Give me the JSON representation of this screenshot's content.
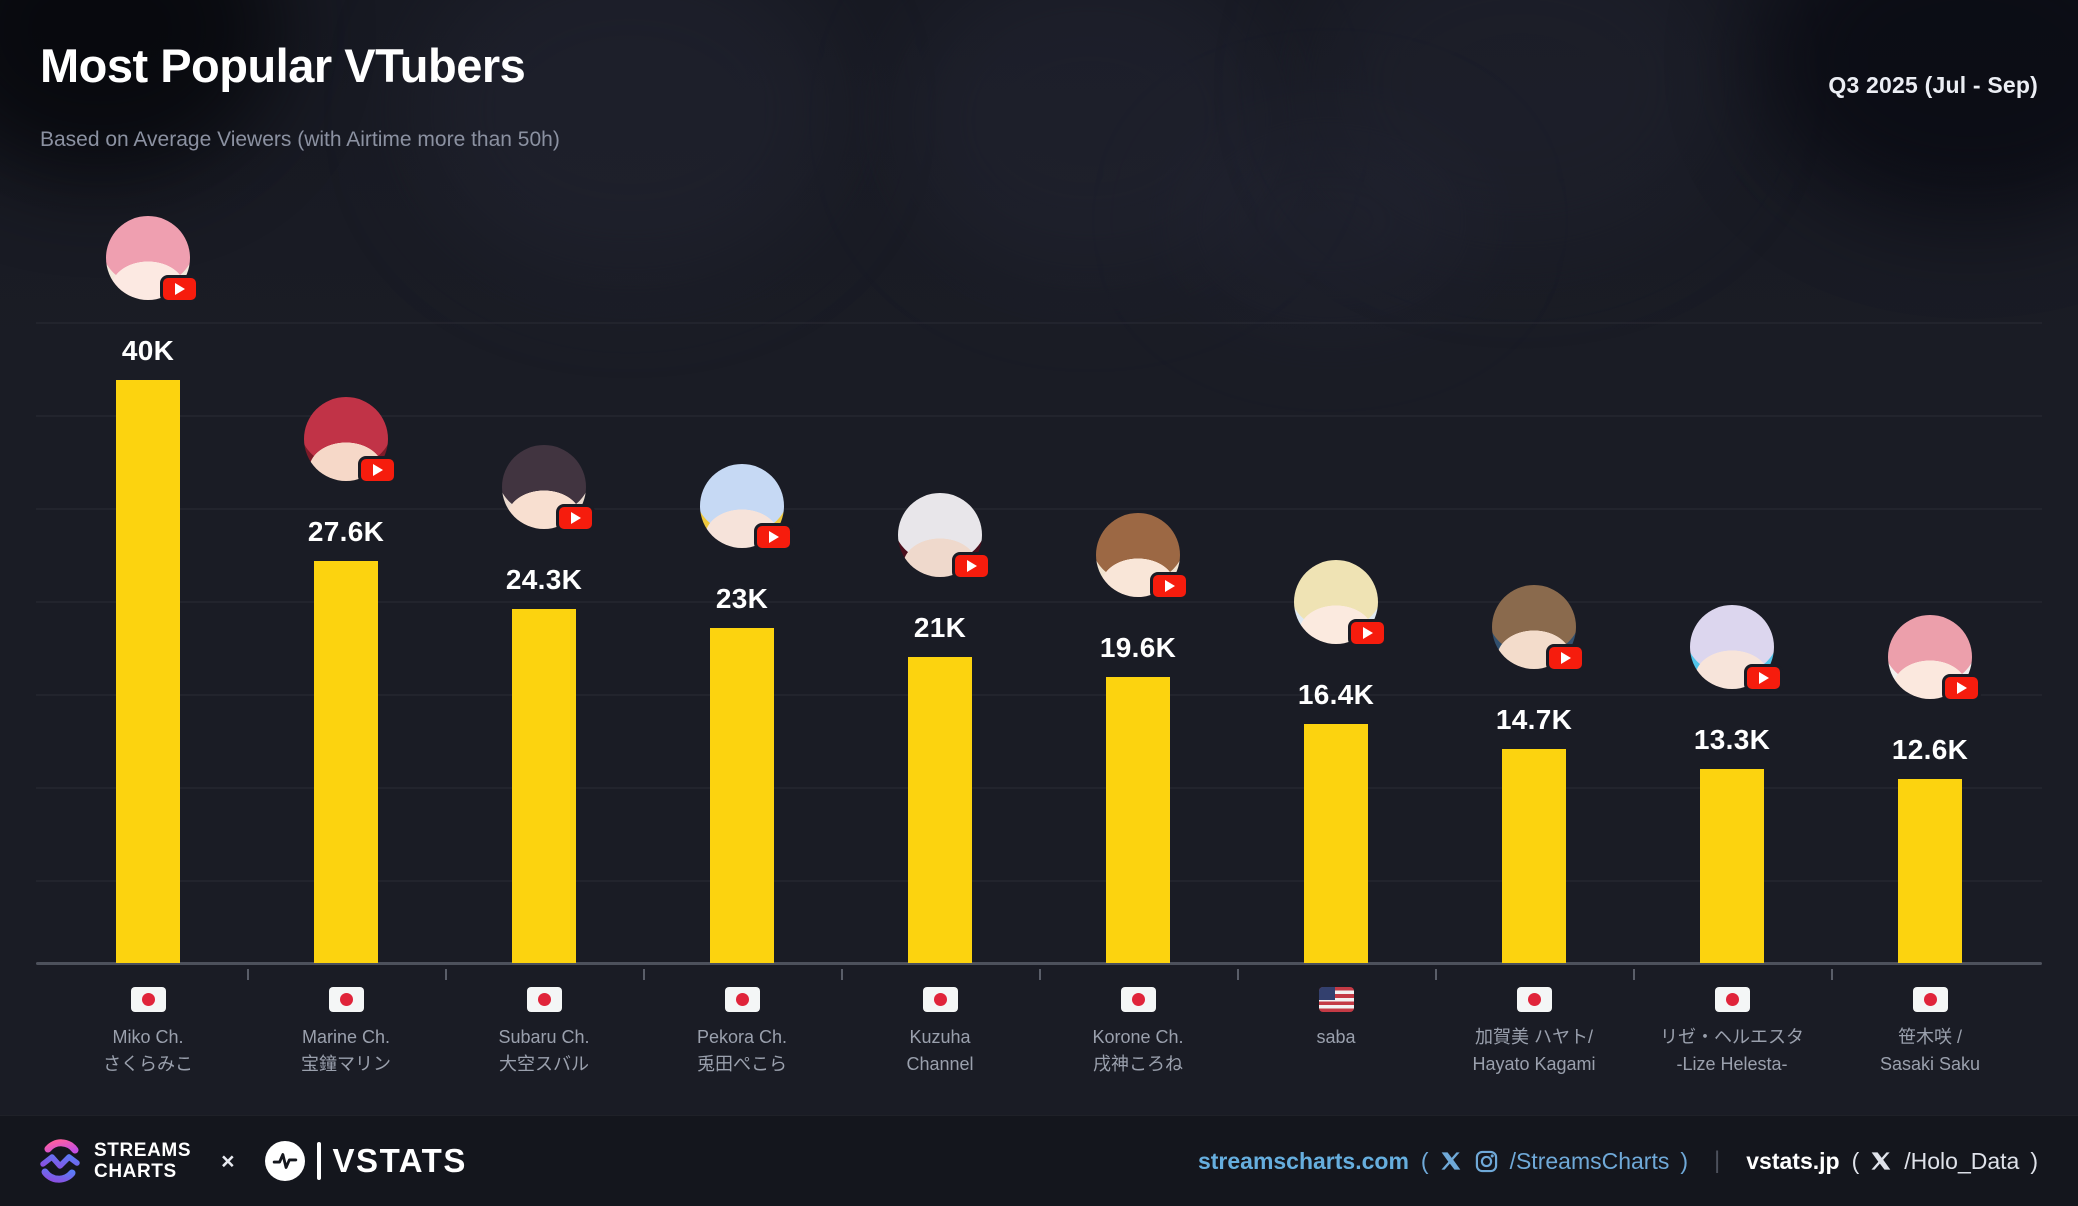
{
  "header": {
    "title": "Most Popular VTubers",
    "subtitle": "Based on Average Viewers (with Airtime more than 50h)",
    "period": "Q3 2025 (Jul - Sep)"
  },
  "chart_data": {
    "type": "bar",
    "title": "Most Popular VTubers",
    "subtitle": "Based on Average Viewers (with Airtime more than 50h)",
    "period": "Q3 2025 (Jul - Sep)",
    "ylabel": "Average Viewers",
    "ylim": [
      0,
      42000
    ],
    "grid": "faint-horizontal",
    "legend": "none",
    "bar_color": "#FCD30F",
    "platform_icon": "youtube-play",
    "entries": [
      {
        "rank": 1,
        "value": 40000,
        "value_label": "40K",
        "name_line1": "Miko Ch.",
        "name_line2": "さくらみこ",
        "country": "JP",
        "avatar": {
          "bg": "#f3e9dc",
          "hair": "#ef9fb0",
          "skin": "#fce9e2"
        }
      },
      {
        "rank": 2,
        "value": 27600,
        "value_label": "27.6K",
        "name_line1": "Marine Ch.",
        "name_line2": "宝鐘マリン",
        "country": "JP",
        "avatar": {
          "bg": "#7d1a28",
          "hair": "#c13347",
          "skin": "#f6d8c8"
        }
      },
      {
        "rank": 3,
        "value": 24300,
        "value_label": "24.3K",
        "name_line1": "Subaru Ch.",
        "name_line2": "大空スバル",
        "country": "JP",
        "avatar": {
          "bg": "#e9dacf",
          "hair": "#413440",
          "skin": "#f8dfd0"
        }
      },
      {
        "rank": 4,
        "value": 23000,
        "value_label": "23K",
        "name_line1": "Pekora Ch.",
        "name_line2": "兎田ぺこら",
        "country": "JP",
        "avatar": {
          "bg": "#efc93f",
          "hair": "#c6d9f4",
          "skin": "#f6e3da"
        }
      },
      {
        "rank": 5,
        "value": 21000,
        "value_label": "21K",
        "name_line1": "Kuzuha",
        "name_line2": "Channel",
        "country": "JP",
        "avatar": {
          "bg": "#4a0f1d",
          "hair": "#e8e6ea",
          "skin": "#efd9cc"
        }
      },
      {
        "rank": 6,
        "value": 19600,
        "value_label": "19.6K",
        "name_line1": "Korone Ch.",
        "name_line2": "戌神ころね",
        "country": "JP",
        "avatar": {
          "bg": "#f0e2cf",
          "hair": "#9c6844",
          "skin": "#f9e6d8"
        }
      },
      {
        "rank": 7,
        "value": 16400,
        "value_label": "16.4K",
        "name_line1": "saba",
        "name_line2": "",
        "country": "US",
        "avatar": {
          "bg": "#dfe9f2",
          "hair": "#efe3b4",
          "skin": "#fbeadf"
        }
      },
      {
        "rank": 8,
        "value": 14700,
        "value_label": "14.7K",
        "name_line1": "加賀美 ハヤト/",
        "name_line2": "Hayato Kagami",
        "country": "JP",
        "avatar": {
          "bg": "#32506e",
          "hair": "#8a6a4d",
          "skin": "#f3dccb"
        }
      },
      {
        "rank": 9,
        "value": 13300,
        "value_label": "13.3K",
        "name_line1": "リゼ・ヘルエスタ",
        "name_line2": "-Lize Helesta-",
        "country": "JP",
        "avatar": {
          "bg": "#52c5ea",
          "hair": "#dcd6ee",
          "skin": "#f7e4da"
        }
      },
      {
        "rank": 10,
        "value": 12600,
        "value_label": "12.6K",
        "name_line1": "笹木咲 /",
        "name_line2": "Sasaki Saku",
        "country": "JP",
        "avatar": {
          "bg": "#f2f0ee",
          "hair": "#ec9fab",
          "skin": "#fbe8de"
        }
      }
    ]
  },
  "footer": {
    "brand1_line1": "STREAMS",
    "brand1_line2": "CHARTS",
    "collab_symbol": "×",
    "brand2": "VSTATS",
    "site1": "streamscharts.com",
    "handle1": "/StreamsCharts",
    "site2": "vstats.jp",
    "handle2": "/Holo_Data",
    "paren_open": "(",
    "paren_close": ")",
    "divider": "|",
    "accent_blue": "#66aede"
  },
  "icons": {
    "platform_badge": "youtube-play-icon",
    "social_1": "x-logo-icon",
    "social_2": "instagram-icon",
    "flags": [
      "japan-flag",
      "us-flag"
    ]
  }
}
